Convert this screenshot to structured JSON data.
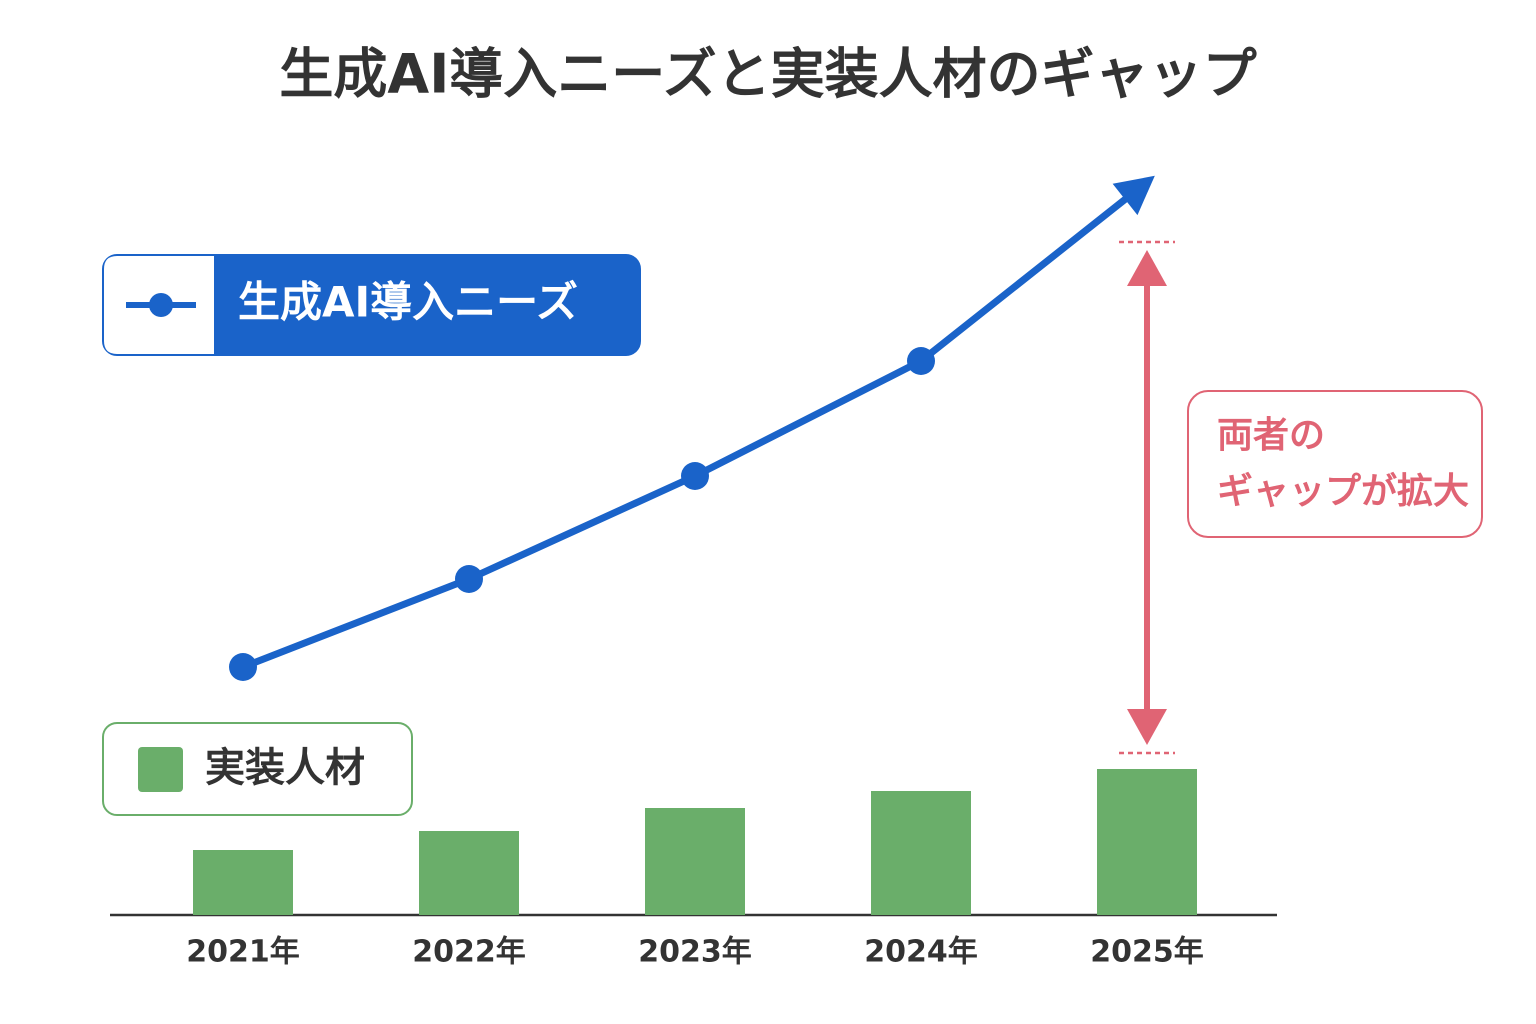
{
  "chart_data": {
    "type": "combo",
    "title": "生成AI導入ニーズと実装人材のギャップ",
    "categories": [
      "2021年",
      "2022年",
      "2023年",
      "2024年",
      "2025年"
    ],
    "series": [
      {
        "name": "生成AI導入ニーズ",
        "type": "line",
        "color": "#1a63c9",
        "values": [
          24.8,
          33.6,
          43.9,
          55.4,
          73.3
        ]
      },
      {
        "name": "実装人材",
        "type": "bar",
        "color": "#6aae6a",
        "values": [
          6.5,
          8.4,
          10.7,
          12.4,
          14.6
        ]
      }
    ],
    "ylim": [
      0,
      75
    ],
    "annotation": {
      "lines": [
        "両者の",
        "ギャップが拡大"
      ],
      "color": "#e06474"
    }
  }
}
